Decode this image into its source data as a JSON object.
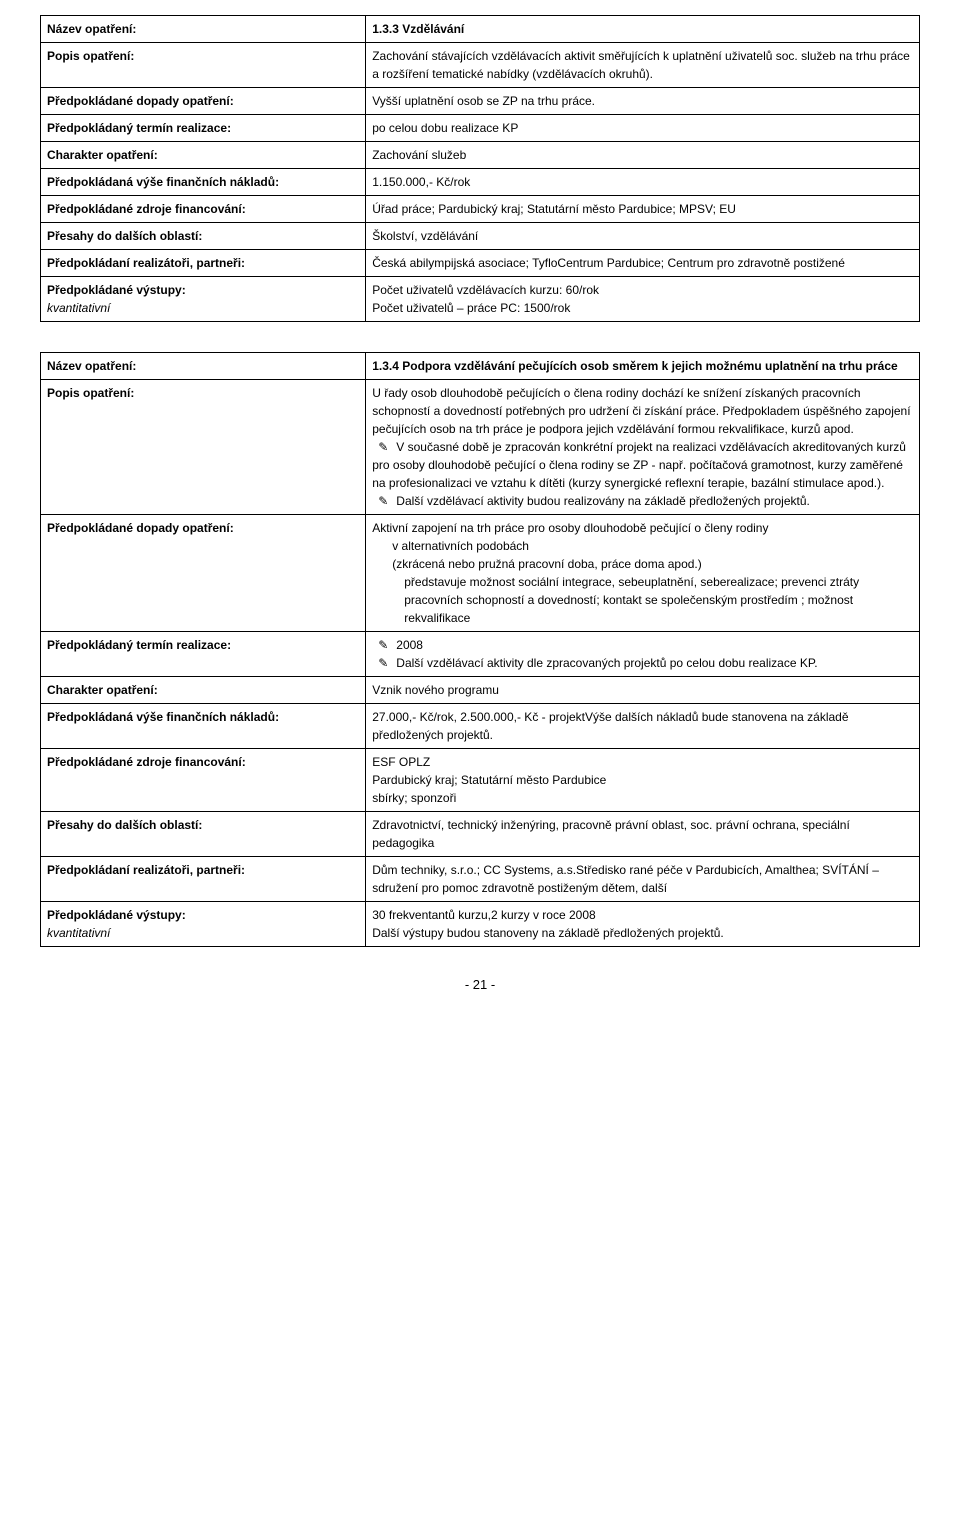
{
  "table1": {
    "rows": [
      {
        "label": "Název opatření:",
        "value_bold": "1.3.3 Vzdělávání"
      },
      {
        "label": "Popis opatření:",
        "value": "Zachování stávajících vzdělávacích aktivit směřujících k uplatnění uživatelů soc. služeb na trhu práce a rozšíření tematické nabídky (vzdělávacích okruhů)."
      },
      {
        "label": "Předpokládané dopady opatření:",
        "value": "Vyšší uplatnění osob se ZP na trhu práce."
      },
      {
        "label": "Předpokládaný termín realizace:",
        "value": "po celou dobu realizace KP"
      },
      {
        "label": "Charakter opatření:",
        "value": "Zachování služeb"
      },
      {
        "label": "Předpokládaná výše finančních nákladů:",
        "value": "1.150.000,- Kč/rok"
      },
      {
        "label": "Předpokládané zdroje financování:",
        "value": "Úřad práce; Pardubický kraj; Statutární město Pardubice; MPSV; EU"
      },
      {
        "label": "Přesahy do dalších oblastí:",
        "value": "Školství, vzdělávání"
      },
      {
        "label": "Předpokládaní realizátoři, partneři:",
        "value": "Česká abilympijská asociace; TyfloCentrum Pardubice; Centrum pro zdravotně postižené"
      },
      {
        "label_bold": "Předpokládané výstupy:",
        "label_italic": "kvantitativní",
        "value_line1": "Počet uživatelů vzdělávacích kurzu: 60/rok",
        "value_line2": "Počet uživatelů – práce PC: 1500/rok"
      }
    ]
  },
  "table2": {
    "nazev_label": "Název opatření:",
    "nazev_value": "1.3.4 Podpora vzdělávání pečujících osob směrem k jejich možnému uplatnění na trhu práce",
    "popis_label": "Popis opatření:",
    "popis_p1": "U řady osob dlouhodobě pečujících o člena rodiny dochází ke snížení získaných pracovních schopností a dovedností potřebných pro udržení či získání práce. Předpokladem úspěšného  zapojení pečujících osob  na trh práce je podpora jejich vzdělávání formou rekvalifikace, kurzů apod.",
    "popis_b1": "V současné době je zpracován konkrétní projekt na realizaci vzdělávacích akreditovaných kurzů pro osoby dlouhodobě pečující o člena rodiny se ZP - např. počítačová gramotnost, kurzy zaměřené na profesionalizaci ve vztahu k dítěti (kurzy synergické reflexní terapie, bazální stimulace apod.).",
    "popis_b2": "Další vzdělávací aktivity budou realizovány na základě předložených projektů.",
    "dopady_label": "Předpokládané dopady opatření:",
    "dopady_l1": "Aktivní zapojení na trh práce pro osoby dlouhodobě pečující o členy rodiny",
    "dopady_l2": "v alternativních podobách",
    "dopady_l3": "(zkrácená  nebo pružná pracovní doba, práce doma apod.)",
    "dopady_l4": "představuje možnost sociální integrace, sebeuplatnění, seberealizace; prevenci ztráty pracovních schopností a dovedností; kontakt se společenským prostředím ; možnost rekvalifikace",
    "termin_label": "Předpokládaný termín realizace:",
    "termin_b1": "2008",
    "termin_b2": "Další vzdělávací aktivity dle zpracovaných projektů po celou dobu realizace KP.",
    "charakter_label": "Charakter opatření:",
    "charakter_value": "Vznik nového programu",
    "naklady_label": "Předpokládaná výše finančních nákladů:",
    "naklady_value": "27.000,- Kč/rok, 2.500.000,- Kč - projektVýše dalších nákladů bude stanovena na základě předložených projektů.",
    "zdroje_label": "Předpokládané zdroje financování:",
    "zdroje_l1": "ESF OPLZ",
    "zdroje_l2": "Pardubický kraj; Statutární město Pardubice",
    "zdroje_l3": "sbírky; sponzoři",
    "presahy_label": "Přesahy do dalších oblastí:",
    "presahy_value": "Zdravotnictví, technický inženýring, pracovně právní oblast, soc. právní ochrana, speciální pedagogika",
    "realizatori_label": "Předpokládaní realizátoři, partneři:",
    "realizatori_value": "Dům techniky, s.r.o.; CC Systems, a.s.Středisko rané péče v Pardubicích, Amalthea; SVÍTÁNÍ – sdružení pro pomoc zdravotně postiženým dětem, další",
    "vystupy_label_bold": "Předpokládané výstupy:",
    "vystupy_label_italic": "kvantitativní",
    "vystupy_l1": "30 frekventantů kurzu,2 kurzy v roce 2008",
    "vystupy_l2": "Další výstupy budou stanoveny na základě předložených projektů."
  },
  "page_number": "- 21 -",
  "arrow": "✎"
}
